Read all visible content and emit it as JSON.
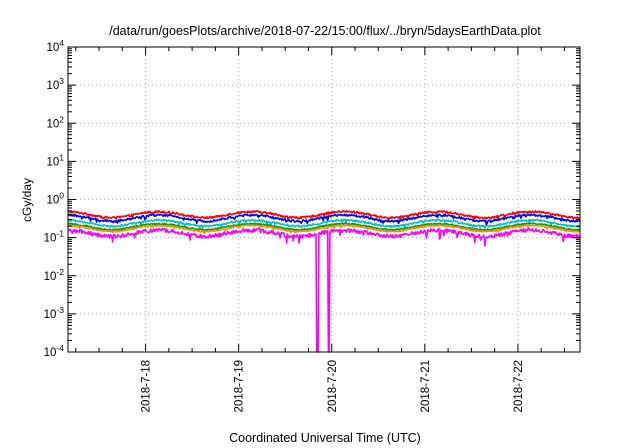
{
  "chart_data": {
    "type": "line",
    "title": "/data/run/goesPlots/archive/2018-07-22/15:00/flux/../bryn/5daysEarthData.plot",
    "xlabel": "Coordinated Universal Time (UTC)",
    "ylabel": "cGy/day",
    "yscale": "log",
    "ylim": [
      0.0001,
      10000
    ],
    "y_ticks": [
      {
        "base": "10",
        "exp": "4"
      },
      {
        "base": "10",
        "exp": "3"
      },
      {
        "base": "10",
        "exp": "2"
      },
      {
        "base": "10",
        "exp": "1"
      },
      {
        "base": "10",
        "exp": "0"
      },
      {
        "base": "10",
        "exp": "-1"
      },
      {
        "base": "10",
        "exp": "-2"
      },
      {
        "base": "10",
        "exp": "-3"
      },
      {
        "base": "10",
        "exp": "-4"
      }
    ],
    "xlim": [
      "2018-07-17 04:00",
      "2018-07-22 16:00"
    ],
    "x_ticks": [
      "2018-7-18",
      "2018-7-19",
      "2018-7-20",
      "2018-7-21",
      "2018-7-22"
    ],
    "grid": true,
    "legend": "none",
    "series": [
      {
        "color": "#ff0000",
        "level": 0.42,
        "spread": 0.12
      },
      {
        "color": "#0000ff",
        "level": 0.34,
        "spread": 0.12
      },
      {
        "color": "#00c0c0",
        "level": 0.25,
        "spread": 0.1
      },
      {
        "color": "#00a000",
        "level": 0.2,
        "spread": 0.08
      },
      {
        "color": "#ff8c00",
        "level": 0.18,
        "spread": 0.07
      },
      {
        "color": "#ff00ff",
        "level": 0.14,
        "spread": 0.22
      }
    ],
    "dropouts": [
      {
        "series_color": "#ff00ff",
        "start": "2018-07-19 20:00",
        "end": "2018-07-19 20:30",
        "value": 0.0001
      },
      {
        "series_color": "#ff00ff",
        "start": "2018-07-19 23:00",
        "end": "2018-07-19 23:30",
        "value": 0.0001
      }
    ]
  }
}
